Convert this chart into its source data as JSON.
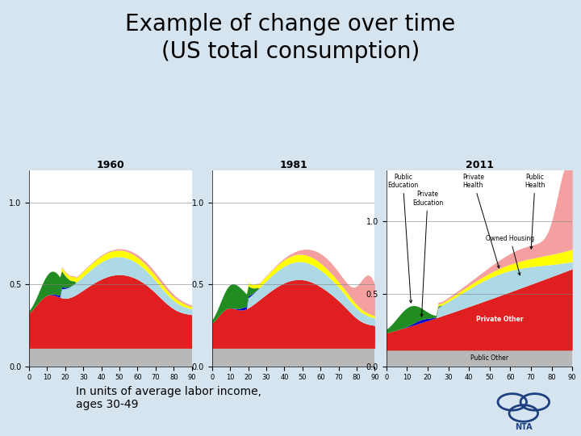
{
  "title": "Example of change over time\n(US total consumption)",
  "subtitle": "In units of average labor income,\nages 30-49",
  "title_fontsize": 20,
  "subtitle_fontsize": 10,
  "bg_color": "#d6e4f0",
  "panel_bg": "#ffffff",
  "years": [
    "1960",
    "1981",
    "2011"
  ],
  "colors": {
    "public_other": "#b8b8b8",
    "private_other": "#e02020",
    "owned_housing": "#add8e6",
    "private_education": "#0000cc",
    "public_education": "#228b22",
    "private_health": "#ffff00",
    "public_health": "#f4a0a0"
  },
  "nta_logo_color": "#1e4080"
}
